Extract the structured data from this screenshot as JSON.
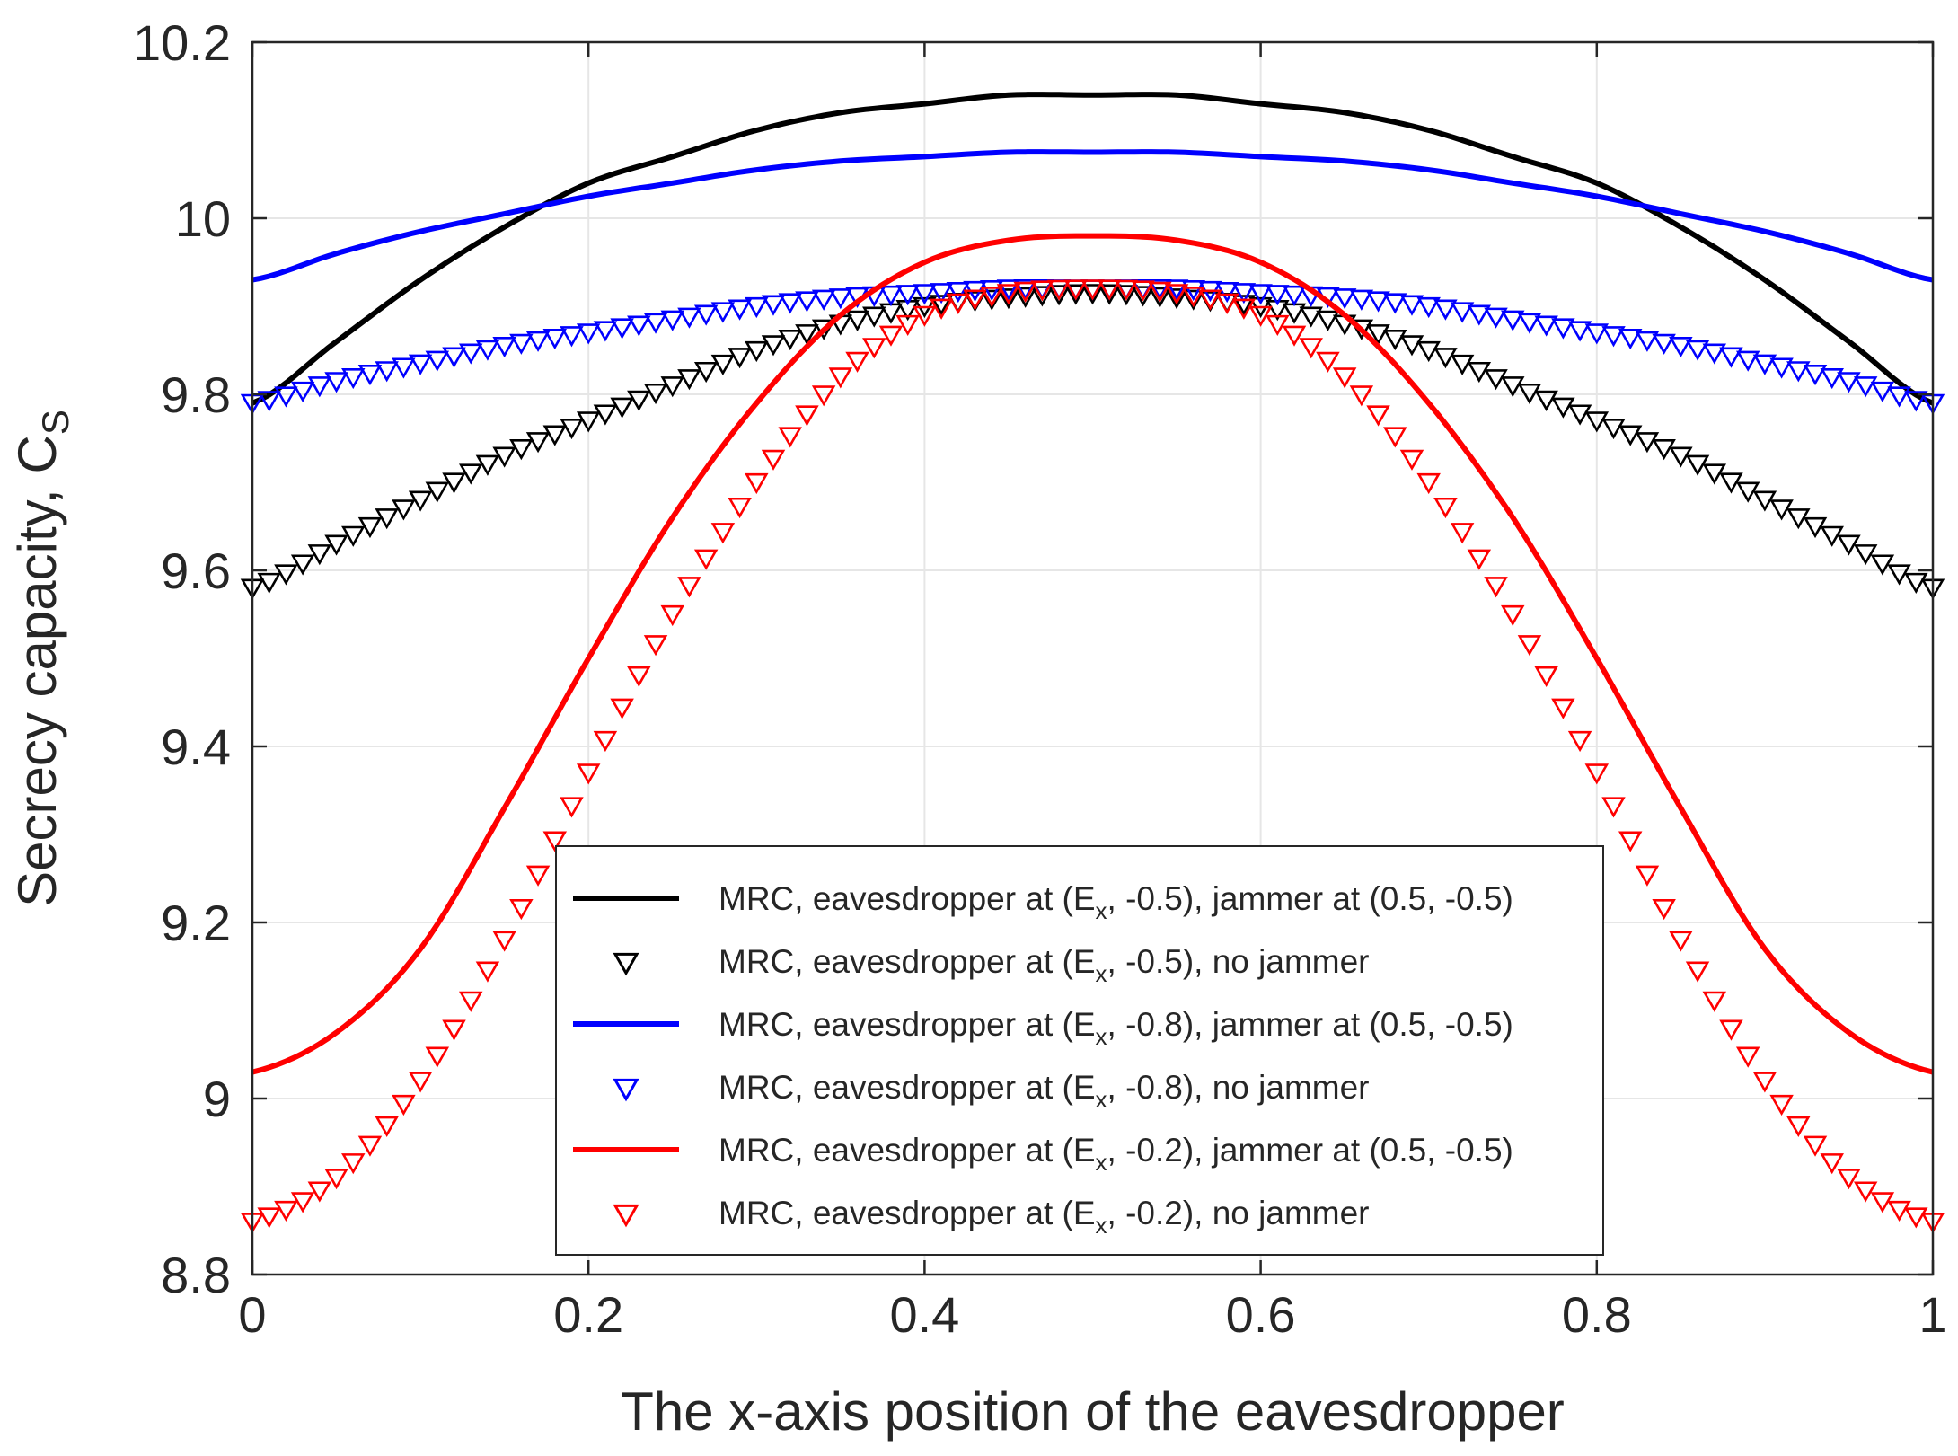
{
  "chart_data": {
    "type": "line",
    "title": "",
    "xlabel": "The x-axis position of the eavesdropper",
    "ylabel": "Secrecy capacity, C",
    "ylabel_sub": "S",
    "xlim": [
      0,
      1
    ],
    "ylim": [
      8.8,
      10.2
    ],
    "grid": true,
    "xticks": [
      0,
      0.2,
      0.4,
      0.6,
      0.8,
      1
    ],
    "xtick_labels": [
      "0",
      "0.2",
      "0.4",
      "0.6",
      "0.8",
      "1"
    ],
    "yticks": [
      8.8,
      9.0,
      9.2,
      9.4,
      9.6,
      9.8,
      10.0,
      10.2
    ],
    "ytick_labels": [
      "8.8",
      "9",
      "9.2",
      "9.4",
      "9.6",
      "9.8",
      "10",
      "10.2"
    ],
    "legend_position": "lower-center",
    "x": [
      0,
      0.05,
      0.1,
      0.15,
      0.2,
      0.25,
      0.3,
      0.35,
      0.4,
      0.45,
      0.5,
      0.55,
      0.6,
      0.65,
      0.7,
      0.75,
      0.8,
      0.85,
      0.9,
      0.95,
      1
    ],
    "series": [
      {
        "id": "black-line",
        "style": "line",
        "color": "#000000",
        "legend_pre": "MRC, eavesdropper at (E",
        "legend_sub": "x",
        "legend_post": ", -0.5), jammer at (0.5, -0.5)",
        "values": [
          9.79,
          9.86,
          9.93,
          9.99,
          10.04,
          10.07,
          10.1,
          10.12,
          10.13,
          10.14,
          10.14,
          10.14,
          10.13,
          10.12,
          10.1,
          10.07,
          10.04,
          9.99,
          9.93,
          9.86,
          9.79
        ]
      },
      {
        "id": "black-markers",
        "style": "markers",
        "color": "#000000",
        "legend_pre": "MRC, eavesdropper at (E",
        "legend_sub": "x",
        "legend_post": ", -0.5), no jammer",
        "values": [
          9.58,
          9.63,
          9.68,
          9.73,
          9.77,
          9.81,
          9.85,
          9.88,
          9.9,
          9.91,
          9.915,
          9.91,
          9.9,
          9.88,
          9.85,
          9.81,
          9.77,
          9.73,
          9.68,
          9.63,
          9.58
        ]
      },
      {
        "id": "blue-line",
        "style": "line",
        "color": "#0000ff",
        "legend_pre": "MRC, eavesdropper at (E",
        "legend_sub": "x",
        "legend_post": ", -0.8), jammer at (0.5, -0.5)",
        "values": [
          9.93,
          9.96,
          9.985,
          10.005,
          10.025,
          10.04,
          10.055,
          10.065,
          10.07,
          10.075,
          10.075,
          10.075,
          10.07,
          10.065,
          10.055,
          10.04,
          10.025,
          10.005,
          9.985,
          9.96,
          9.93
        ]
      },
      {
        "id": "blue-markers",
        "style": "markers",
        "color": "#0000ff",
        "legend_pre": "MRC, eavesdropper at (E",
        "legend_sub": "x",
        "legend_post": ", -0.8),  no jammer",
        "values": [
          9.79,
          9.815,
          9.835,
          9.855,
          9.87,
          9.885,
          9.9,
          9.91,
          9.915,
          9.92,
          9.92,
          9.92,
          9.915,
          9.91,
          9.9,
          9.885,
          9.87,
          9.855,
          9.835,
          9.815,
          9.79
        ]
      },
      {
        "id": "red-line",
        "style": "line",
        "color": "#ff0000",
        "legend_pre": "MRC, eavesdropper at (E",
        "legend_sub": "x",
        "legend_post": ", -0.2), jammer at (0.5, -0.5)",
        "values": [
          9.03,
          9.075,
          9.17,
          9.33,
          9.5,
          9.66,
          9.79,
          9.89,
          9.95,
          9.975,
          9.98,
          9.975,
          9.95,
          9.89,
          9.79,
          9.66,
          9.5,
          9.33,
          9.17,
          9.075,
          9.03
        ]
      },
      {
        "id": "red-markers",
        "style": "markers",
        "color": "#ff0000",
        "legend_pre": "MRC, eavesdropper at (E",
        "legend_sub": "x",
        "legend_post": ", -0.2), no jammer",
        "values": [
          8.86,
          8.91,
          9.02,
          9.18,
          9.37,
          9.55,
          9.7,
          9.82,
          9.89,
          9.915,
          9.92,
          9.915,
          9.89,
          9.82,
          9.7,
          9.55,
          9.37,
          9.18,
          9.02,
          8.91,
          8.86
        ]
      }
    ]
  }
}
